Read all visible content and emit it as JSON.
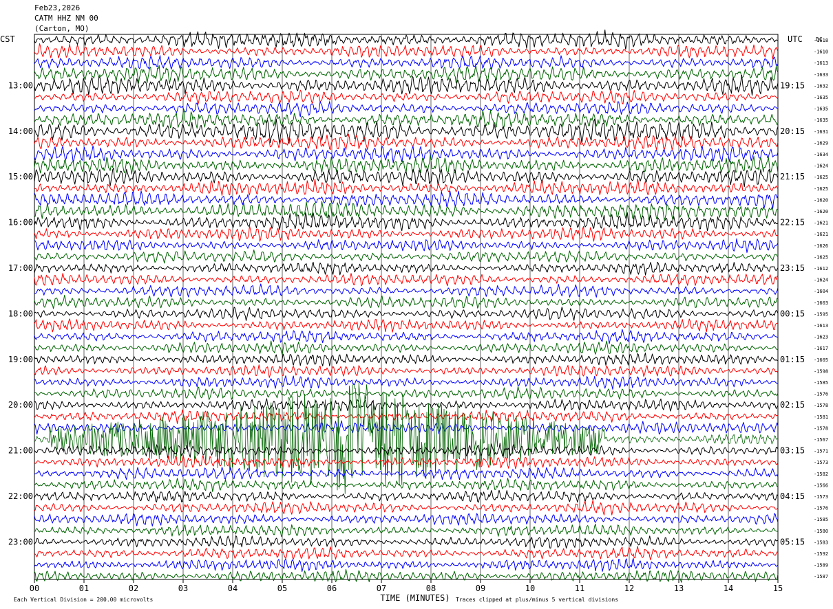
{
  "header": {
    "date": "Feb23,2026",
    "station": "CATM HHZ NM 00",
    "location": "(Carton, MO)"
  },
  "labels": {
    "left_tz": "CST",
    "right_tz": "UTC",
    "dc_header": "DC",
    "x_title": "TIME (MINUTES)",
    "footer_left": "Each Vertical Division =  200.00 microvolts",
    "footer_right": "Traces clipped at plus/minus 5 vertical divisions"
  },
  "colors": {
    "trace_cycle": [
      "#000000",
      "#ff0000",
      "#0000ff",
      "#006400"
    ],
    "grid": "#000000",
    "background": "#ffffff"
  },
  "chart_data": {
    "type": "line",
    "x_ticks": [
      "00",
      "01",
      "02",
      "03",
      "04",
      "05",
      "06",
      "07",
      "08",
      "09",
      "10",
      "11",
      "12",
      "13",
      "14",
      "15"
    ],
    "xlim": [
      0,
      15
    ],
    "traces_per_hour": 4,
    "trace_minutes": 15,
    "left_hour_labels": [
      "13:00",
      "14:00",
      "15:00",
      "16:00",
      "17:00",
      "18:00",
      "19:00",
      "20:00",
      "21:00",
      "22:00",
      "23:00"
    ],
    "right_hour_labels": [
      "19:15",
      "20:15",
      "21:15",
      "22:15",
      "23:15",
      "00:15",
      "01:15",
      "02:15",
      "03:15",
      "04:15",
      "05:15"
    ],
    "dc_offsets": [
      "-1618",
      "-1610",
      "-1613",
      "-1633",
      "-1632",
      "-1635",
      "-1635",
      "-1635",
      "-1631",
      "-1629",
      "-1634",
      "-1624",
      "-1625",
      "-1625",
      "-1620",
      "-1620",
      "-1621",
      "-1621",
      "-1626",
      "-1625",
      "-1612",
      "-1624",
      "-1604",
      "-1603",
      "-1595",
      "-1613",
      "-1623",
      "-1617",
      "-1605",
      "-1598",
      "-1585",
      "-1576",
      "-1578",
      "-1581",
      "-1578",
      "-1567",
      "-1571",
      "-1573",
      "-1582",
      "-1566",
      "-1573",
      "-1576",
      "-1585",
      "-1580",
      "-1583",
      "-1592",
      "-1589",
      "-1587"
    ],
    "trace_amplitude": [
      0.55,
      0.45,
      0.45,
      0.55,
      0.6,
      0.45,
      0.45,
      0.55,
      0.75,
      0.5,
      0.5,
      0.55,
      0.55,
      0.5,
      0.5,
      0.6,
      0.55,
      0.45,
      0.4,
      0.4,
      0.4,
      0.4,
      0.4,
      0.4,
      0.4,
      0.4,
      0.4,
      0.4,
      0.4,
      0.4,
      0.4,
      0.4,
      0.4,
      0.4,
      0.4,
      0.4,
      0.4,
      0.4,
      0.4,
      0.4,
      0.4,
      0.4,
      0.4,
      0.4,
      0.4,
      0.4,
      0.4,
      0.4
    ],
    "event": {
      "trace_index": 35,
      "start_minute": 0.3,
      "peak_minute": 6.5,
      "end_minute": 11.5,
      "peak_amplitude": 5
    }
  }
}
